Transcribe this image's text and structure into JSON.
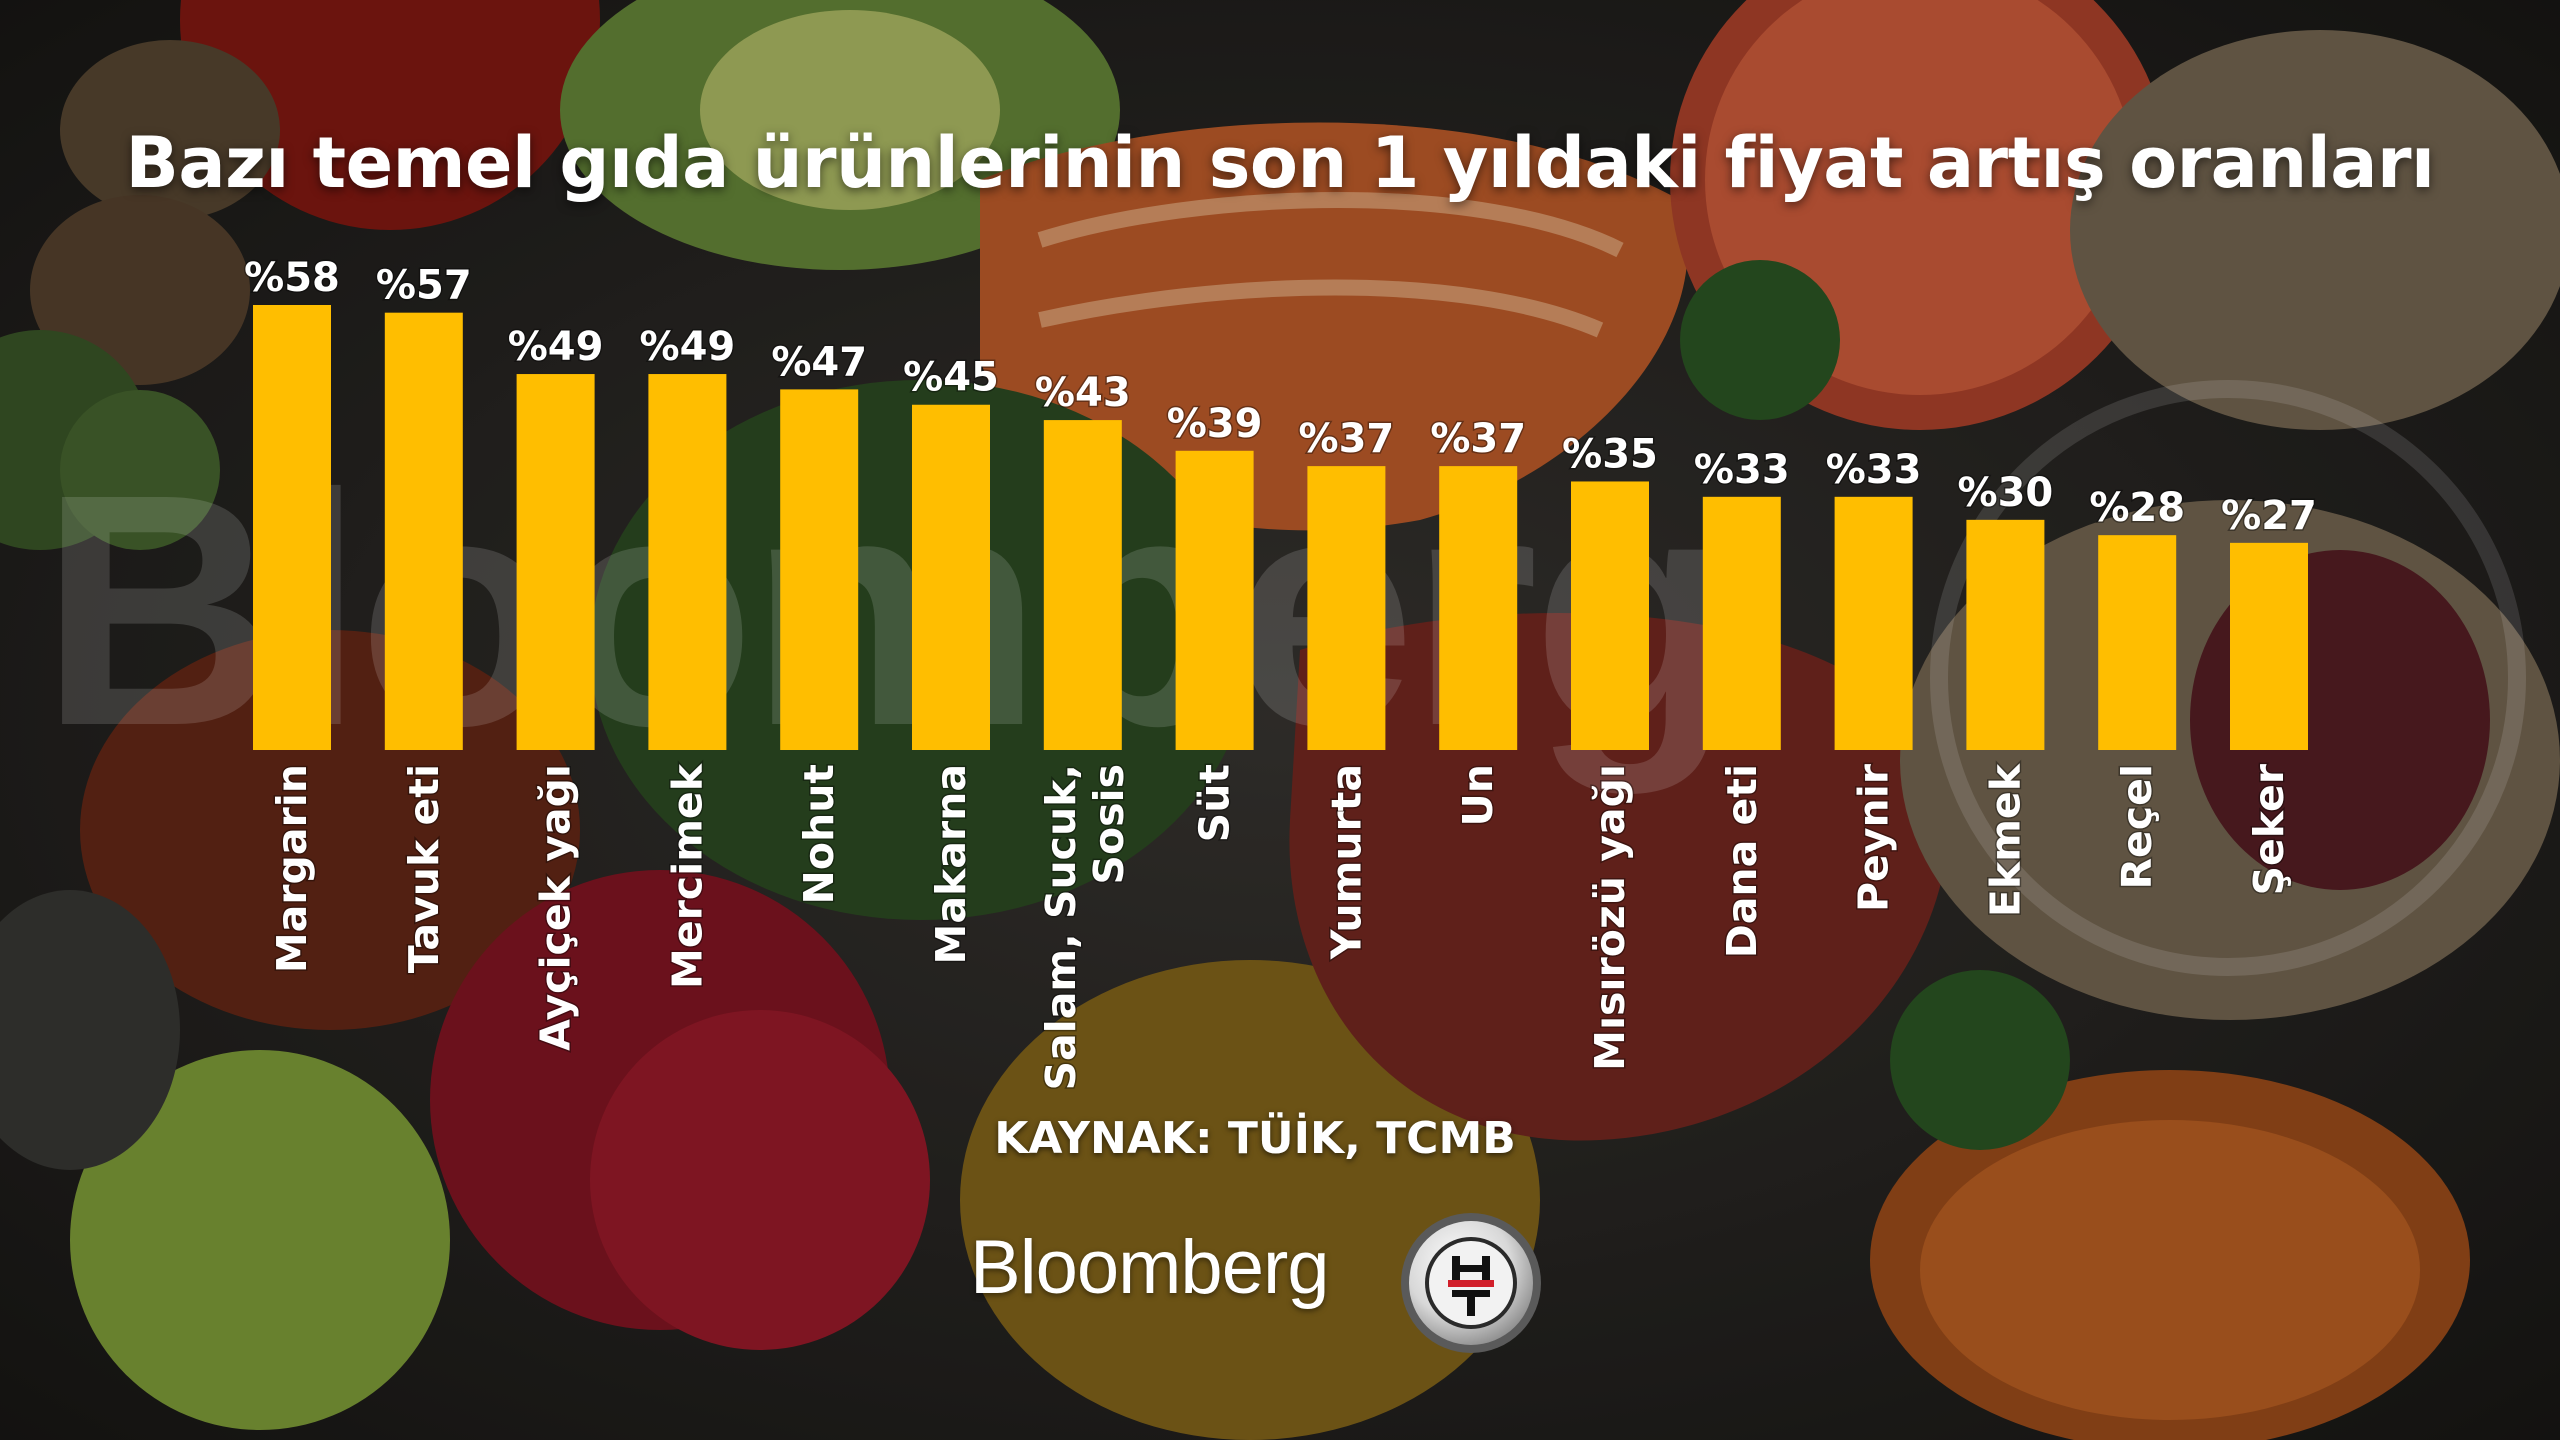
{
  "title": "Bazı temel gıda ürünlerinin son 1 yıldaki fiyat artış oranları",
  "source": "KAYNAK: TÜİK, TCMB",
  "brand": {
    "name": "Bloomberg",
    "logo_text": "HT",
    "watermark": "Bloomberg"
  },
  "colors": {
    "bar": "#FFBE00",
    "text": "#FFFFFF"
  },
  "chart_data": {
    "type": "bar",
    "title": "Bazı temel gıda ürünlerinin son 1 yıldaki fiyat artış oranları",
    "categories": [
      "Margarin",
      "Tavuk eti",
      "Ayçiçek yağı",
      "Mercimek",
      "Nohut",
      "Makarna",
      "Salam, Sucuk, Sosis",
      "Süt",
      "Yumurta",
      "Un",
      "Mısırözü yağı",
      "Dana eti",
      "Peynir",
      "Ekmek",
      "Reçel",
      "Şeker"
    ],
    "values": [
      58,
      57,
      49,
      49,
      47,
      45,
      43,
      39,
      37,
      37,
      35,
      33,
      33,
      30,
      28,
      27
    ],
    "value_labels": [
      "%58",
      "%57",
      "%49",
      "%49",
      "%47",
      "%45",
      "%43",
      "%39",
      "%37",
      "%37",
      "%35",
      "%33",
      "%33",
      "%30",
      "%28",
      "%27"
    ],
    "ylim": [
      0,
      58
    ],
    "grid": false,
    "legend": "none",
    "xlabel": "",
    "ylabel": ""
  }
}
